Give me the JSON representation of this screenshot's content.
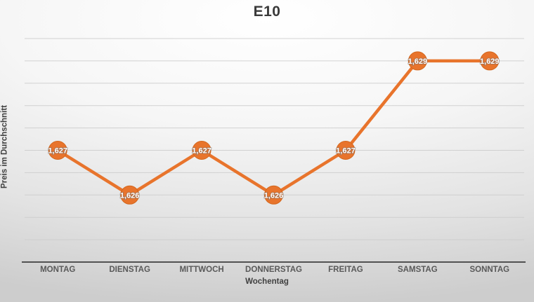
{
  "chart_data": {
    "type": "line",
    "title": "E10",
    "xlabel": "Wochentag",
    "ylabel": "Preis im Durchschnitt",
    "categories": [
      "MONTAG",
      "DIENSTAG",
      "MITTWOCH",
      "DONNERSTAG",
      "FREITAG",
      "SAMSTAG",
      "SONNTAG"
    ],
    "series": [
      {
        "name": "E10",
        "values": [
          1.627,
          1.626,
          1.627,
          1.626,
          1.627,
          1.629,
          1.629
        ],
        "labels": [
          "1,627",
          "1,626",
          "1,627",
          "1,626",
          "1,627",
          "1,629",
          "1,629"
        ],
        "color": "#e8742c"
      }
    ],
    "ylim": [
      1.6245,
      1.6295
    ],
    "grid_step": 0.0005,
    "grid": true,
    "legend": "none",
    "y_tick_labels_visible": false,
    "data_labels": "centered-on-marker"
  },
  "colors": {
    "accent": "#e8742c",
    "marker_edge": "#d3661c",
    "axis_line": "#262626",
    "gridline": "#cbcbcb",
    "tick_text": "#595959",
    "title_text": "#3a3a3a",
    "data_label_text": "#ffffff",
    "bg_top": "#ffffff",
    "bg_bottom": "#cdcdcd"
  }
}
